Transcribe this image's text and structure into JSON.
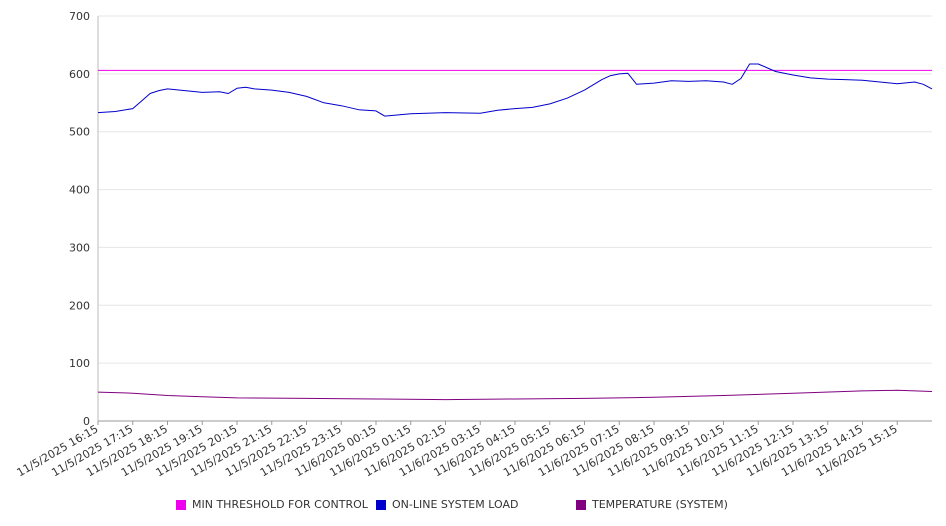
{
  "chart_data": {
    "type": "line",
    "title": "",
    "xlabel": "",
    "ylabel": "",
    "ylim": [
      0,
      700
    ],
    "yticks": [
      0,
      100,
      200,
      300,
      400,
      500,
      600,
      700
    ],
    "x_range": [
      "11/5/2025 16:15",
      "11/6/2025 16:15"
    ],
    "xtick_labels": [
      "11/5/2025 16:15",
      "11/5/2025 17:15",
      "11/5/2025 18:15",
      "11/5/2025 19:15",
      "11/5/2025 20:15",
      "11/5/2025 21:15",
      "11/5/2025 22:15",
      "11/5/2025 23:15",
      "11/6/2025 00:15",
      "11/6/2025 01:15",
      "11/6/2025 02:15",
      "11/6/2025 03:15",
      "11/6/2025 04:15",
      "11/6/2025 05:15",
      "11/6/2025 06:15",
      "11/6/2025 07:15",
      "11/6/2025 08:15",
      "11/6/2025 09:15",
      "11/6/2025 10:15",
      "11/6/2025 11:15",
      "11/6/2025 12:15",
      "11/6/2025 13:15",
      "11/6/2025 14:15",
      "11/6/2025 15:15"
    ],
    "grid": true,
    "legend_position": "bottom",
    "series": [
      {
        "name": "MIN THRESHOLD FOR CONTROL",
        "color": "#ee00ee",
        "x": [
          "11/5/2025 16:15",
          "11/6/2025 16:15"
        ],
        "values": [
          606,
          606
        ]
      },
      {
        "name": "ON-LINE SYSTEM LOAD",
        "color": "#0000cc",
        "x": [
          "11/5/2025 16:15",
          "11/5/2025 16:45",
          "11/5/2025 17:15",
          "11/5/2025 17:30",
          "11/5/2025 17:45",
          "11/5/2025 18:00",
          "11/5/2025 18:15",
          "11/5/2025 18:45",
          "11/5/2025 19:15",
          "11/5/2025 19:45",
          "11/5/2025 20:00",
          "11/5/2025 20:15",
          "11/5/2025 20:30",
          "11/5/2025 20:45",
          "11/5/2025 21:15",
          "11/5/2025 21:45",
          "11/5/2025 22:15",
          "11/5/2025 22:45",
          "11/5/2025 23:15",
          "11/5/2025 23:45",
          "11/6/2025 00:15",
          "11/6/2025 00:30",
          "11/6/2025 01:15",
          "11/6/2025 02:15",
          "11/6/2025 03:15",
          "11/6/2025 03:45",
          "11/6/2025 04:15",
          "11/6/2025 04:45",
          "11/6/2025 05:15",
          "11/6/2025 05:45",
          "11/6/2025 06:15",
          "11/6/2025 06:45",
          "11/6/2025 07:00",
          "11/6/2025 07:15",
          "11/6/2025 07:30",
          "11/6/2025 07:45",
          "11/6/2025 08:15",
          "11/6/2025 08:45",
          "11/6/2025 09:15",
          "11/6/2025 09:45",
          "11/6/2025 10:15",
          "11/6/2025 10:30",
          "11/6/2025 10:45",
          "11/6/2025 11:00",
          "11/6/2025 11:15",
          "11/6/2025 11:45",
          "11/6/2025 12:15",
          "11/6/2025 12:45",
          "11/6/2025 13:15",
          "11/6/2025 13:45",
          "11/6/2025 14:15",
          "11/6/2025 14:45",
          "11/6/2025 15:15",
          "11/6/2025 15:45",
          "11/6/2025 16:00",
          "11/6/2025 16:15"
        ],
        "values": [
          533,
          535,
          540,
          553,
          566,
          571,
          574,
          571,
          568,
          569,
          566,
          575,
          577,
          574,
          572,
          568,
          561,
          550,
          545,
          538,
          536,
          527,
          531,
          533,
          532,
          537,
          540,
          542,
          548,
          558,
          572,
          590,
          597,
          600,
          601,
          582,
          584,
          588,
          587,
          588,
          586,
          582,
          592,
          617,
          617,
          604,
          598,
          593,
          591,
          590,
          589,
          586,
          583,
          586,
          582,
          574
        ]
      },
      {
        "name": "TEMPERATURE (SYSTEM)",
        "color": "#800080",
        "x": [
          "11/5/2025 16:15",
          "11/5/2025 17:15",
          "11/5/2025 18:15",
          "11/5/2025 19:15",
          "11/5/2025 20:15",
          "11/5/2025 22:15",
          "11/6/2025 00:15",
          "11/6/2025 02:15",
          "11/6/2025 04:15",
          "11/6/2025 06:15",
          "11/6/2025 08:15",
          "11/6/2025 10:15",
          "11/6/2025 12:15",
          "11/6/2025 14:15",
          "11/6/2025 15:15",
          "11/6/2025 16:15"
        ],
        "values": [
          50,
          48,
          44,
          42,
          40,
          39,
          38,
          37,
          38,
          39,
          41,
          44,
          48,
          52,
          53,
          51
        ]
      }
    ]
  }
}
